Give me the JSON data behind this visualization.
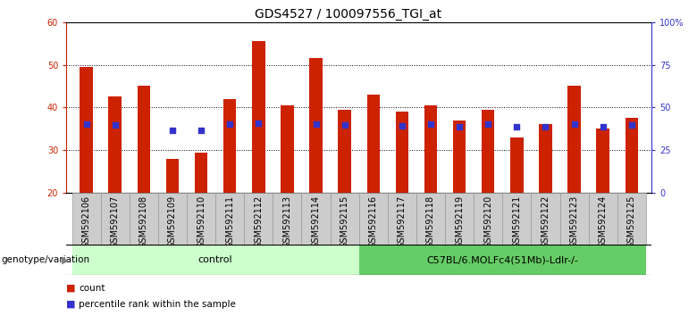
{
  "title": "GDS4527 / 100097556_TGI_at",
  "samples": [
    "GSM592106",
    "GSM592107",
    "GSM592108",
    "GSM592109",
    "GSM592110",
    "GSM592111",
    "GSM592112",
    "GSM592113",
    "GSM592114",
    "GSM592115",
    "GSM592116",
    "GSM592117",
    "GSM592118",
    "GSM592119",
    "GSM592120",
    "GSM592121",
    "GSM592122",
    "GSM592123",
    "GSM592124",
    "GSM592125"
  ],
  "counts": [
    49.5,
    42.5,
    45.0,
    28.0,
    29.5,
    42.0,
    55.5,
    40.5,
    51.5,
    39.5,
    43.0,
    39.0,
    40.5,
    37.0,
    39.5,
    33.0,
    36.0,
    45.0,
    35.0,
    37.5
  ],
  "percentile_ranks": [
    40.0,
    39.5,
    null,
    36.5,
    36.5,
    40.0,
    41.0,
    null,
    40.5,
    39.5,
    null,
    39.0,
    40.5,
    38.5,
    40.0,
    38.5,
    38.5,
    40.5,
    38.5,
    39.5
  ],
  "control_count": 10,
  "control_label": "control",
  "treatment_label": "C57BL/6.MOLFc4(51Mb)-Ldlr-/-",
  "genotype_label": "genotype/variation",
  "ylim_left": [
    20,
    60
  ],
  "ylim_right": [
    0,
    100
  ],
  "yticks_left": [
    20,
    30,
    40,
    50,
    60
  ],
  "yticks_right": [
    0,
    25,
    50,
    75,
    100
  ],
  "bar_color": "#cc2200",
  "dot_color": "#3333cc",
  "control_bg": "#ccffcc",
  "treatment_bg": "#66cc66",
  "xticklabel_bg": "#cccccc",
  "title_fontsize": 10,
  "tick_fontsize": 7,
  "bar_width": 0.45,
  "dot_size": 18
}
